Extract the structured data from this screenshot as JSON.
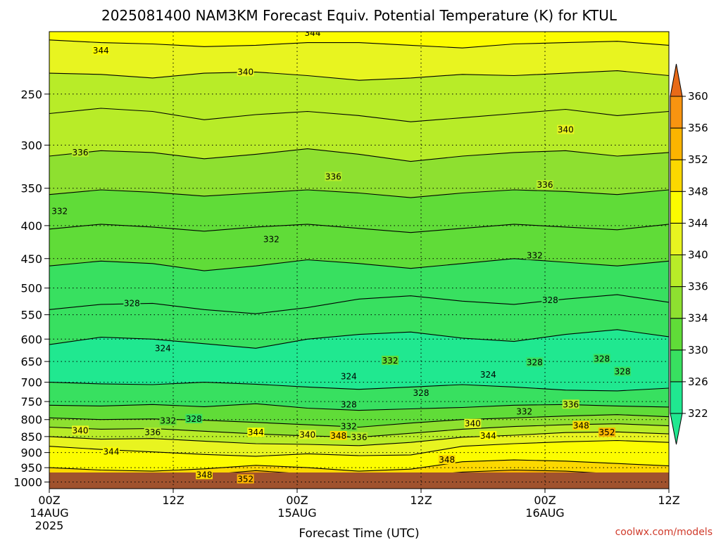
{
  "chart_data": {
    "type": "heatmap",
    "subtype": "time-height filled contour",
    "title": "2025081400 NAM3KM Forecast Equiv. Potential Temperature (K) for KTUL",
    "xlabel": "Forecast Time (UTC)",
    "ylabel": "",
    "x_ticks": [
      {
        "hours": 0,
        "label": "00Z",
        "date": "14AUG",
        "year": "2025"
      },
      {
        "hours": 12,
        "label": "12Z",
        "date": "",
        "year": ""
      },
      {
        "hours": 24,
        "label": "00Z",
        "date": "15AUG",
        "year": ""
      },
      {
        "hours": 36,
        "label": "12Z",
        "date": "",
        "year": ""
      },
      {
        "hours": 48,
        "label": "00Z",
        "date": "16AUG",
        "year": ""
      },
      {
        "hours": 60,
        "label": "12Z",
        "date": "",
        "year": ""
      }
    ],
    "xlim": [
      0,
      60
    ],
    "y_ticks": [
      250,
      300,
      350,
      400,
      450,
      500,
      550,
      600,
      650,
      700,
      750,
      800,
      850,
      900,
      950,
      1000
    ],
    "ylim": [
      200,
      1024
    ],
    "y_scale": "log pressure, inverted",
    "grid": true,
    "legend": "colorbar-right",
    "colorbar": {
      "levels": [
        322,
        326,
        330,
        334,
        336,
        340,
        344,
        348,
        352,
        356,
        360
      ],
      "colors": [
        "#20e890",
        "#38e060",
        "#60dc38",
        "#8ee030",
        "#b8ec28",
        "#e8f420",
        "#fcfc00",
        "#fcd800",
        "#fcb400",
        "#f89410",
        "#e86a18"
      ],
      "extend": "both"
    },
    "isotherms": [
      {
        "value": 344,
        "y": [
          206,
          208,
          209,
          211,
          210,
          208,
          208,
          210,
          212,
          209,
          208,
          207,
          210
        ]
      },
      {
        "value": 340,
        "y": [
          232,
          233,
          236,
          232,
          231,
          234,
          238,
          236,
          233,
          234,
          232,
          230,
          234
        ]
      },
      {
        "value": 338,
        "y": [
          268,
          263,
          266,
          274,
          269,
          266,
          270,
          276,
          272,
          268,
          264,
          270,
          266
        ]
      },
      {
        "value": 336,
        "y": [
          312,
          306,
          308,
          315,
          310,
          304,
          310,
          318,
          312,
          308,
          306,
          312,
          308
        ]
      },
      {
        "value": 334,
        "y": [
          358,
          352,
          355,
          360,
          356,
          352,
          356,
          362,
          356,
          352,
          354,
          358,
          352
        ]
      },
      {
        "value": 332,
        "y": [
          405,
          398,
          402,
          408,
          402,
          398,
          404,
          410,
          404,
          398,
          402,
          406,
          398
        ]
      },
      {
        "value": 330,
        "y": [
          462,
          454,
          458,
          470,
          462,
          452,
          458,
          466,
          458,
          450,
          456,
          462,
          454
        ]
      },
      {
        "value": 328,
        "y": [
          540,
          530,
          528,
          540,
          548,
          536,
          520,
          514,
          524,
          530,
          520,
          512,
          526
        ]
      },
      {
        "value": 326,
        "y": [
          612,
          596,
          600,
          610,
          620,
          600,
          590,
          585,
          598,
          605,
          590,
          580,
          595
        ]
      },
      {
        "value": 324,
        "y": [
          700,
          704,
          706,
          700,
          705,
          712,
          718,
          712,
          706,
          712,
          720,
          722,
          715
        ]
      },
      {
        "value": 328,
        "y": [
          760,
          762,
          758,
          764,
          756,
          768,
          774,
          770,
          766,
          760,
          758,
          762,
          765
        ]
      },
      {
        "value": 332,
        "y": [
          795,
          800,
          798,
          802,
          808,
          815,
          822,
          810,
          800,
          795,
          790,
          786,
          792
        ]
      },
      {
        "value": 336,
        "y": [
          822,
          828,
          826,
          834,
          842,
          848,
          852,
          840,
          828,
          820,
          815,
          812,
          818
        ]
      },
      {
        "value": 340,
        "y": [
          850,
          858,
          856,
          864,
          872,
          874,
          878,
          868,
          852,
          846,
          838,
          836,
          842
        ]
      },
      {
        "value": 344,
        "y": [
          880,
          890,
          898,
          906,
          912,
          904,
          910,
          908,
          880,
          872,
          866,
          862,
          868
        ]
      },
      {
        "value": 348,
        "y": [
          950,
          958,
          962,
          954,
          942,
          950,
          962,
          955,
          930,
          924,
          928,
          936,
          944
        ]
      },
      {
        "value": 352,
        "y": [
          992,
          992,
          990,
          975,
          960,
          972,
          990,
          980,
          965,
          958,
          962,
          972,
          985
        ]
      }
    ],
    "contour_labels": [
      {
        "text": "344",
        "hours": 25.5,
        "pressure": 201
      },
      {
        "text": "344",
        "hours": 5.0,
        "pressure": 214
      },
      {
        "text": "340",
        "hours": 19.0,
        "pressure": 231
      },
      {
        "text": "340",
        "hours": 50.0,
        "pressure": 284
      },
      {
        "text": "336",
        "hours": 3.0,
        "pressure": 308
      },
      {
        "text": "336",
        "hours": 27.5,
        "pressure": 336
      },
      {
        "text": "336",
        "hours": 48.0,
        "pressure": 346
      },
      {
        "text": "332",
        "hours": 1.0,
        "pressure": 380
      },
      {
        "text": "332",
        "hours": 21.5,
        "pressure": 420
      },
      {
        "text": "332",
        "hours": 47.0,
        "pressure": 445
      },
      {
        "text": "328",
        "hours": 8.0,
        "pressure": 528
      },
      {
        "text": "328",
        "hours": 48.5,
        "pressure": 522
      },
      {
        "text": "324",
        "hours": 11.0,
        "pressure": 620
      },
      {
        "text": "332",
        "hours": 33.0,
        "pressure": 648
      },
      {
        "text": "324",
        "hours": 29.0,
        "pressure": 686
      },
      {
        "text": "324",
        "hours": 42.5,
        "pressure": 682
      },
      {
        "text": "328",
        "hours": 47.0,
        "pressure": 652
      },
      {
        "text": "328",
        "hours": 53.5,
        "pressure": 644
      },
      {
        "text": "328",
        "hours": 55.5,
        "pressure": 674
      },
      {
        "text": "328",
        "hours": 36.0,
        "pressure": 728
      },
      {
        "text": "328",
        "hours": 29.0,
        "pressure": 758
      },
      {
        "text": "332",
        "hours": 11.5,
        "pressure": 804
      },
      {
        "text": "328",
        "hours": 14.0,
        "pressure": 798
      },
      {
        "text": "332",
        "hours": 29.0,
        "pressure": 820
      },
      {
        "text": "332",
        "hours": 46.0,
        "pressure": 778
      },
      {
        "text": "336",
        "hours": 50.5,
        "pressure": 758
      },
      {
        "text": "336",
        "hours": 10.0,
        "pressure": 838
      },
      {
        "text": "336",
        "hours": 30.0,
        "pressure": 852
      },
      {
        "text": "340",
        "hours": 3.0,
        "pressure": 832
      },
      {
        "text": "340",
        "hours": 25.0,
        "pressure": 845
      },
      {
        "text": "340",
        "hours": 41.0,
        "pressure": 812
      },
      {
        "text": "344",
        "hours": 20.0,
        "pressure": 838
      },
      {
        "text": "344",
        "hours": 42.5,
        "pressure": 848
      },
      {
        "text": "344",
        "hours": 6.0,
        "pressure": 898
      },
      {
        "text": "348",
        "hours": 28.0,
        "pressure": 848
      },
      {
        "text": "348",
        "hours": 51.5,
        "pressure": 818
      },
      {
        "text": "348",
        "hours": 38.5,
        "pressure": 924
      },
      {
        "text": "348",
        "hours": 15.0,
        "pressure": 975
      },
      {
        "text": "352",
        "hours": 54.0,
        "pressure": 838
      },
      {
        "text": "352",
        "hours": 19.0,
        "pressure": 990
      }
    ]
  },
  "watermark": "coolwx.com/models"
}
